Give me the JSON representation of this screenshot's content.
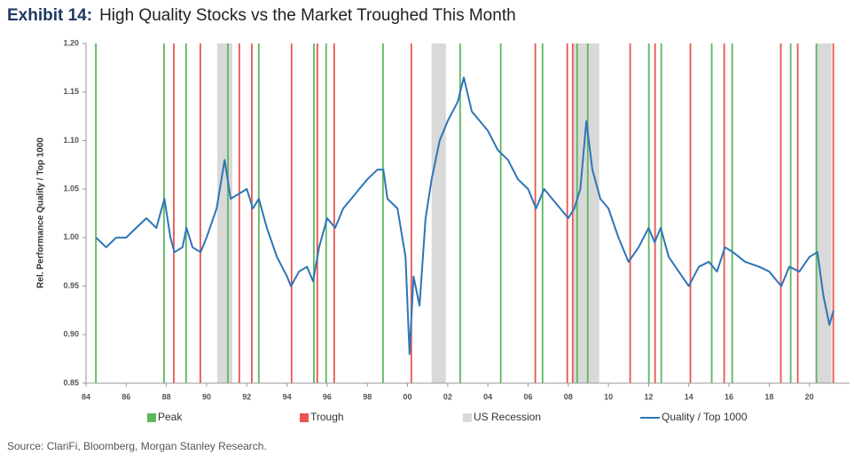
{
  "chart_data": {
    "type": "line",
    "title_label": "Exhibit 14:",
    "title": "High Quality Stocks vs the Market Troughed This Month",
    "y_label": "Rel. Performance Quality / Top 1000",
    "source": "Source: ClariFi, Bloomberg, Morgan Stanley Research.",
    "xlim": [
      1984,
      2022
    ],
    "xticks": [
      {
        "value": 1984,
        "label": "84"
      },
      {
        "value": 1986,
        "label": "86"
      },
      {
        "value": 1988,
        "label": "88"
      },
      {
        "value": 1990,
        "label": "90"
      },
      {
        "value": 1992,
        "label": "92"
      },
      {
        "value": 1994,
        "label": "94"
      },
      {
        "value": 1996,
        "label": "96"
      },
      {
        "value": 1998,
        "label": "98"
      },
      {
        "value": 2000,
        "label": "00"
      },
      {
        "value": 2002,
        "label": "02"
      },
      {
        "value": 2004,
        "label": "04"
      },
      {
        "value": 2006,
        "label": "06"
      },
      {
        "value": 2008,
        "label": "08"
      },
      {
        "value": 2010,
        "label": "10"
      },
      {
        "value": 2012,
        "label": "12"
      },
      {
        "value": 2014,
        "label": "14"
      },
      {
        "value": 2016,
        "label": "16"
      },
      {
        "value": 2018,
        "label": "18"
      },
      {
        "value": 2020,
        "label": "20"
      }
    ],
    "ylim": [
      0.85,
      1.2
    ],
    "yticks": [
      0.85,
      {
        "value": 0.9,
        "label": "0.90"
      },
      0.95,
      {
        "value": 1.0,
        "label": "1.00"
      },
      1.05,
      {
        "value": 1.1,
        "label": "1.10"
      },
      1.15,
      {
        "value": 1.2,
        "label": "1.20"
      }
    ],
    "x": [
      1984.5,
      1985,
      1985.5,
      1986,
      1986.5,
      1987,
      1987.5,
      1987.9,
      1988.2,
      1988.4,
      1988.8,
      1989,
      1989.3,
      1989.7,
      1990,
      1990.5,
      1990.9,
      1991.2,
      1991.6,
      1992,
      1992.3,
      1992.6,
      1993,
      1993.5,
      1994,
      1994.2,
      1994.6,
      1995,
      1995.3,
      1995.6,
      1996,
      1996.4,
      1996.8,
      1997.2,
      1997.6,
      1998,
      1998.5,
      1998.8,
      1999,
      1999.5,
      1999.9,
      2000.1,
      2000.3,
      2000.6,
      2000.9,
      2001.2,
      2001.6,
      2002,
      2002.5,
      2002.8,
      2003.2,
      2003.6,
      2004,
      2004.5,
      2005,
      2005.5,
      2006,
      2006.4,
      2006.8,
      2007.2,
      2007.6,
      2008,
      2008.3,
      2008.6,
      2008.9,
      2009.2,
      2009.6,
      2010,
      2010.5,
      2011,
      2011.5,
      2012,
      2012.3,
      2012.6,
      2013,
      2013.5,
      2014,
      2014.5,
      2015,
      2015.4,
      2015.8,
      2016.2,
      2016.8,
      2017.5,
      2018,
      2018.6,
      2019,
      2019.5,
      2020,
      2020.4,
      2020.7,
      2021,
      2021.2
    ],
    "series": [
      {
        "name": "Quality / Top 1000",
        "color": "#2e75b6",
        "values": [
          1.0,
          0.99,
          1.0,
          1.0,
          1.01,
          1.02,
          1.01,
          1.04,
          1.0,
          0.985,
          0.99,
          1.01,
          0.99,
          0.985,
          1.0,
          1.03,
          1.08,
          1.04,
          1.045,
          1.05,
          1.03,
          1.04,
          1.01,
          0.98,
          0.96,
          0.95,
          0.965,
          0.97,
          0.955,
          0.99,
          1.02,
          1.01,
          1.03,
          1.04,
          1.05,
          1.06,
          1.07,
          1.07,
          1.04,
          1.03,
          0.98,
          0.88,
          0.96,
          0.93,
          1.02,
          1.06,
          1.1,
          1.12,
          1.14,
          1.165,
          1.13,
          1.12,
          1.11,
          1.09,
          1.08,
          1.06,
          1.05,
          1.03,
          1.05,
          1.04,
          1.03,
          1.02,
          1.03,
          1.05,
          1.12,
          1.07,
          1.04,
          1.03,
          1.0,
          0.975,
          0.99,
          1.01,
          0.995,
          1.01,
          0.98,
          0.965,
          0.95,
          0.97,
          0.975,
          0.965,
          0.99,
          0.985,
          0.975,
          0.97,
          0.965,
          0.95,
          0.97,
          0.965,
          0.98,
          0.985,
          0.94,
          0.91,
          0.925
        ]
      }
    ],
    "peaks": {
      "name": "Peak",
      "color": "#5cb85c",
      "x": [
        1984.49,
        1987.88,
        1988.98,
        1991.06,
        1992.6,
        1995.34,
        1995.95,
        1998.78,
        2002.62,
        2004.64,
        2006.72,
        2008.44,
        2008.97,
        2012.01,
        2012.63,
        2015.14,
        2016.16,
        2019.07,
        2020.35
      ]
    },
    "troughs": {
      "name": "Trough",
      "color": "#e8554e",
      "x": [
        1988.37,
        1989.69,
        1991.63,
        1992.25,
        1994.23,
        1995.51,
        1996.35,
        2000.19,
        2006.36,
        2007.95,
        2008.22,
        2011.08,
        2012.32,
        2014.08,
        2015.76,
        2018.58,
        2019.42,
        2021.19
      ]
    },
    "recessions": {
      "name": "US Recession",
      "color": "#d9d9d9",
      "ranges": [
        [
          1990.53,
          1991.28
        ],
        [
          2001.2,
          2001.91
        ],
        [
          2008.26,
          2009.54
        ],
        [
          2020.3,
          2021.1
        ]
      ]
    }
  }
}
